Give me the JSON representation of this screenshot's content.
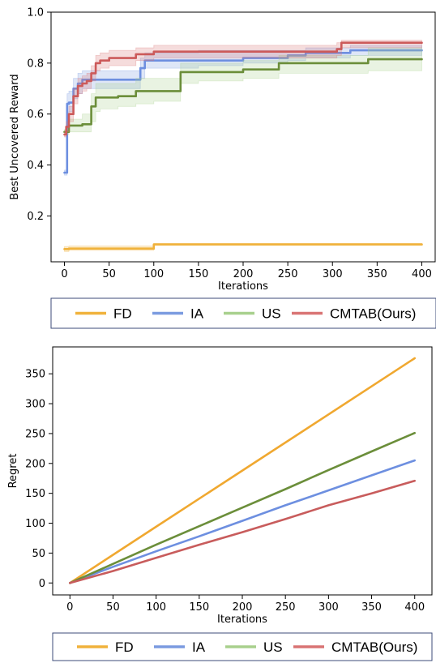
{
  "legend": [
    {
      "label": "FD",
      "color": "#f0b23c"
    },
    {
      "label": "IA",
      "color": "#7b9be0"
    },
    {
      "label": "US",
      "color": "#a8d08d"
    },
    {
      "label": "CMTAB(Ours)",
      "color": "#d97474"
    }
  ],
  "chart_data": [
    {
      "type": "line",
      "xlabel": "Iterations",
      "ylabel": "Best Uncovered Reward",
      "xlim": [
        -15,
        415
      ],
      "ylim": [
        0.02,
        1.0
      ],
      "xticks": [
        0,
        50,
        100,
        150,
        200,
        250,
        300,
        350,
        400
      ],
      "yticks": [
        0.2,
        0.4,
        0.6,
        0.8,
        1.0
      ],
      "grid": false,
      "legend_position": "below",
      "series": [
        {
          "name": "FD",
          "color": "#f0b23c",
          "band_color": "#f0b23c",
          "x": [
            0,
            5,
            96,
            100,
            400
          ],
          "y": [
            0.07,
            0.072,
            0.072,
            0.088,
            0.088
          ],
          "lower": [
            0.06,
            0.065,
            0.065,
            0.085,
            0.085
          ],
          "upper": [
            0.08,
            0.082,
            0.082,
            0.092,
            0.092
          ]
        },
        {
          "name": "IA",
          "color": "#6d8fe0",
          "band_color": "#7b9be0",
          "x": [
            0,
            2,
            3,
            5,
            10,
            15,
            20,
            50,
            80,
            85,
            90,
            150,
            200,
            250,
            270,
            310,
            320,
            400
          ],
          "y": [
            0.37,
            0.37,
            0.64,
            0.645,
            0.7,
            0.72,
            0.735,
            0.735,
            0.735,
            0.78,
            0.81,
            0.81,
            0.82,
            0.83,
            0.84,
            0.84,
            0.85,
            0.85
          ],
          "lower": [
            0.36,
            0.36,
            0.6,
            0.61,
            0.66,
            0.68,
            0.7,
            0.7,
            0.7,
            0.74,
            0.78,
            0.79,
            0.8,
            0.81,
            0.82,
            0.82,
            0.83,
            0.83
          ],
          "upper": [
            0.38,
            0.38,
            0.68,
            0.69,
            0.74,
            0.76,
            0.77,
            0.77,
            0.77,
            0.82,
            0.84,
            0.85,
            0.85,
            0.85,
            0.86,
            0.86,
            0.87,
            0.87
          ]
        },
        {
          "name": "US",
          "color": "#6b8e3a",
          "band_color": "#a8d08d",
          "x": [
            0,
            5,
            20,
            30,
            35,
            40,
            60,
            80,
            100,
            130,
            135,
            150,
            200,
            240,
            250,
            300,
            340,
            350,
            400
          ],
          "y": [
            0.53,
            0.555,
            0.56,
            0.63,
            0.665,
            0.665,
            0.67,
            0.69,
            0.69,
            0.765,
            0.765,
            0.765,
            0.775,
            0.8,
            0.8,
            0.8,
            0.815,
            0.815,
            0.815
          ],
          "lower": [
            0.52,
            0.53,
            0.53,
            0.57,
            0.61,
            0.62,
            0.63,
            0.64,
            0.65,
            0.72,
            0.72,
            0.73,
            0.74,
            0.76,
            0.76,
            0.76,
            0.77,
            0.77,
            0.77
          ],
          "upper": [
            0.54,
            0.58,
            0.6,
            0.68,
            0.72,
            0.72,
            0.72,
            0.74,
            0.74,
            0.8,
            0.8,
            0.8,
            0.81,
            0.83,
            0.83,
            0.83,
            0.86,
            0.86,
            0.86
          ]
        },
        {
          "name": "CMTAB(Ours)",
          "color": "#cc5a5a",
          "band_color": "#d97474",
          "x": [
            0,
            2,
            5,
            10,
            15,
            20,
            25,
            30,
            35,
            40,
            50,
            60,
            80,
            100,
            150,
            200,
            250,
            305,
            310,
            400
          ],
          "y": [
            0.52,
            0.55,
            0.6,
            0.67,
            0.71,
            0.72,
            0.73,
            0.76,
            0.8,
            0.81,
            0.82,
            0.82,
            0.835,
            0.845,
            0.845,
            0.845,
            0.845,
            0.855,
            0.88,
            0.88
          ],
          "lower": [
            0.51,
            0.53,
            0.57,
            0.64,
            0.68,
            0.69,
            0.7,
            0.73,
            0.77,
            0.78,
            0.79,
            0.79,
            0.81,
            0.82,
            0.82,
            0.82,
            0.82,
            0.83,
            0.86,
            0.86
          ],
          "upper": [
            0.53,
            0.57,
            0.63,
            0.7,
            0.74,
            0.75,
            0.76,
            0.79,
            0.83,
            0.84,
            0.85,
            0.85,
            0.86,
            0.87,
            0.87,
            0.87,
            0.87,
            0.88,
            0.89,
            0.89
          ]
        }
      ]
    },
    {
      "type": "line",
      "xlabel": "Iterations",
      "ylabel": "Regret",
      "xlim": [
        -20,
        420
      ],
      "ylim": [
        -20,
        395
      ],
      "xticks": [
        0,
        50,
        100,
        150,
        200,
        250,
        300,
        350,
        400
      ],
      "yticks": [
        0,
        50,
        100,
        150,
        200,
        250,
        300,
        350
      ],
      "grid": false,
      "legend_position": "below",
      "series": [
        {
          "name": "FD",
          "color": "#f0a830",
          "x": [
            0,
            100,
            200,
            300,
            400
          ],
          "y": [
            0,
            94,
            188,
            282,
            376
          ]
        },
        {
          "name": "IA",
          "color": "#6d8fe0",
          "x": [
            0,
            50,
            100,
            150,
            200,
            250,
            300,
            350,
            400
          ],
          "y": [
            0,
            27,
            53,
            78,
            104,
            130,
            155,
            180,
            205
          ]
        },
        {
          "name": "US",
          "color": "#6b8e3a",
          "x": [
            0,
            50,
            100,
            150,
            200,
            250,
            300,
            350,
            400
          ],
          "y": [
            0,
            32,
            64,
            95,
            126,
            157,
            189,
            220,
            251
          ]
        },
        {
          "name": "CMTAB(Ours)",
          "color": "#c85c5c",
          "x": [
            0,
            50,
            100,
            150,
            200,
            250,
            300,
            350,
            400
          ],
          "y": [
            0,
            20,
            42,
            64,
            85,
            107,
            130,
            150,
            171
          ]
        }
      ]
    }
  ]
}
